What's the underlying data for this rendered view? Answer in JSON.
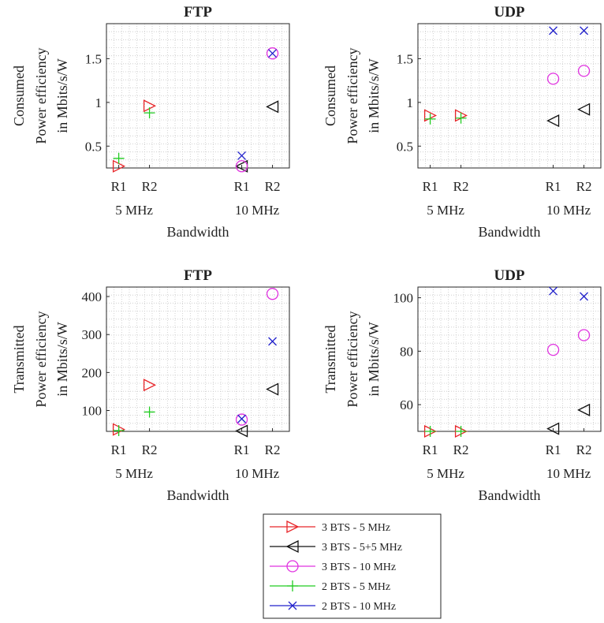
{
  "colors": {
    "3 BTS - 5 MHz": "#e8262a",
    "3 BTS - 5+5 MHz": "#111111",
    "3 BTS - 10 MHz": "#e033e0",
    "2 BTS - 5 MHz": "#22cc22",
    "2 BTS - 10 MHz": "#2222cc"
  },
  "legend": {
    "placement": "bottom-center",
    "entries": [
      {
        "label": "3 BTS - 5 MHz",
        "marker": "triangle-right"
      },
      {
        "label": "3 BTS - 5+5 MHz",
        "marker": "triangle-left"
      },
      {
        "label": "3 BTS - 10 MHz",
        "marker": "circle"
      },
      {
        "label": "2 BTS - 5 MHz",
        "marker": "plus"
      },
      {
        "label": "2 BTS - 10 MHz",
        "marker": "x"
      }
    ]
  },
  "chart_data": [
    {
      "type": "scatter",
      "title": "FTP",
      "ylabel": [
        "Consumed",
        "Power efficiency",
        "in Mbits/s/W"
      ],
      "xlabel": "Bandwidth",
      "x_ticks": [
        "R1",
        "R2",
        "R1",
        "R2"
      ],
      "x_groups": [
        "5 MHz",
        "10 MHz"
      ],
      "ylim": [
        0.25,
        1.9
      ],
      "y_ticks": [
        0.5,
        1,
        1.5
      ],
      "grid": true,
      "series": [
        {
          "name": "3 BTS - 5 MHz",
          "x": [
            1,
            2
          ],
          "y": [
            0.27,
            0.96
          ]
        },
        {
          "name": "2 BTS - 5 MHz",
          "x": [
            1,
            2
          ],
          "y": [
            0.36,
            0.88
          ]
        },
        {
          "name": "3 BTS - 5+5 MHz",
          "x": [
            5,
            6
          ],
          "y": [
            0.27,
            0.95
          ]
        },
        {
          "name": "3 BTS - 10 MHz",
          "x": [
            5,
            6
          ],
          "y": [
            0.27,
            1.56
          ]
        },
        {
          "name": "2 BTS - 10 MHz",
          "x": [
            5,
            6
          ],
          "y": [
            0.39,
            1.56
          ]
        }
      ]
    },
    {
      "type": "scatter",
      "title": "UDP",
      "ylabel": [
        "Consumed",
        "Power efficiency",
        "in Mbits/s/W"
      ],
      "xlabel": "Bandwidth",
      "x_ticks": [
        "R1",
        "R2",
        "R1",
        "R2"
      ],
      "x_groups": [
        "5 MHz",
        "10 MHz"
      ],
      "ylim": [
        0.25,
        1.9
      ],
      "y_ticks": [
        0.5,
        1,
        1.5
      ],
      "grid": true,
      "series": [
        {
          "name": "3 BTS - 5 MHz",
          "x": [
            1,
            2
          ],
          "y": [
            0.85,
            0.85
          ]
        },
        {
          "name": "2 BTS - 5 MHz",
          "x": [
            1,
            2
          ],
          "y": [
            0.81,
            0.82
          ]
        },
        {
          "name": "3 BTS - 5+5 MHz",
          "x": [
            5,
            6
          ],
          "y": [
            0.79,
            0.92
          ]
        },
        {
          "name": "3 BTS - 10 MHz",
          "x": [
            5,
            6
          ],
          "y": [
            1.27,
            1.36
          ]
        },
        {
          "name": "2 BTS - 10 MHz",
          "x": [
            5,
            6
          ],
          "y": [
            1.82,
            1.82
          ]
        }
      ]
    },
    {
      "type": "scatter",
      "title": "FTP",
      "ylabel": [
        "Transmitted",
        "Power efficiency",
        "in Mbits/s/W"
      ],
      "xlabel": "Bandwidth",
      "x_ticks": [
        "R1",
        "R2",
        "R1",
        "R2"
      ],
      "x_groups": [
        "5 MHz",
        "10 MHz"
      ],
      "ylim": [
        45,
        425
      ],
      "y_ticks": [
        100,
        200,
        300,
        400
      ],
      "grid": true,
      "series": [
        {
          "name": "3 BTS - 5 MHz",
          "x": [
            1,
            2
          ],
          "y": [
            50,
            167
          ]
        },
        {
          "name": "2 BTS - 5 MHz",
          "x": [
            1,
            2
          ],
          "y": [
            47,
            96
          ]
        },
        {
          "name": "3 BTS - 5+5 MHz",
          "x": [
            5,
            6
          ],
          "y": [
            46,
            156
          ]
        },
        {
          "name": "3 BTS - 10 MHz",
          "x": [
            5,
            6
          ],
          "y": [
            76,
            407
          ]
        },
        {
          "name": "2 BTS - 10 MHz",
          "x": [
            5,
            6
          ],
          "y": [
            78,
            282
          ]
        }
      ]
    },
    {
      "type": "scatter",
      "title": "UDP",
      "ylabel": [
        "Transmitted",
        "Power efficiency",
        "in Mbits/s/W"
      ],
      "xlabel": "Bandwidth",
      "x_ticks": [
        "R1",
        "R2",
        "R1",
        "R2"
      ],
      "x_groups": [
        "5 MHz",
        "10 MHz"
      ],
      "ylim": [
        50,
        104
      ],
      "y_ticks": [
        60,
        80,
        100
      ],
      "grid": true,
      "series": [
        {
          "name": "3 BTS - 5 MHz",
          "x": [
            1,
            2
          ],
          "y": [
            50,
            50
          ]
        },
        {
          "name": "2 BTS - 5 MHz",
          "x": [
            1,
            2
          ],
          "y": [
            50,
            50
          ]
        },
        {
          "name": "3 BTS - 5+5 MHz",
          "x": [
            5,
            6
          ],
          "y": [
            51,
            58
          ]
        },
        {
          "name": "3 BTS - 10 MHz",
          "x": [
            5,
            6
          ],
          "y": [
            80.5,
            86
          ]
        },
        {
          "name": "2 BTS - 10 MHz",
          "x": [
            5,
            6
          ],
          "y": [
            102.5,
            100.5
          ]
        }
      ]
    }
  ]
}
